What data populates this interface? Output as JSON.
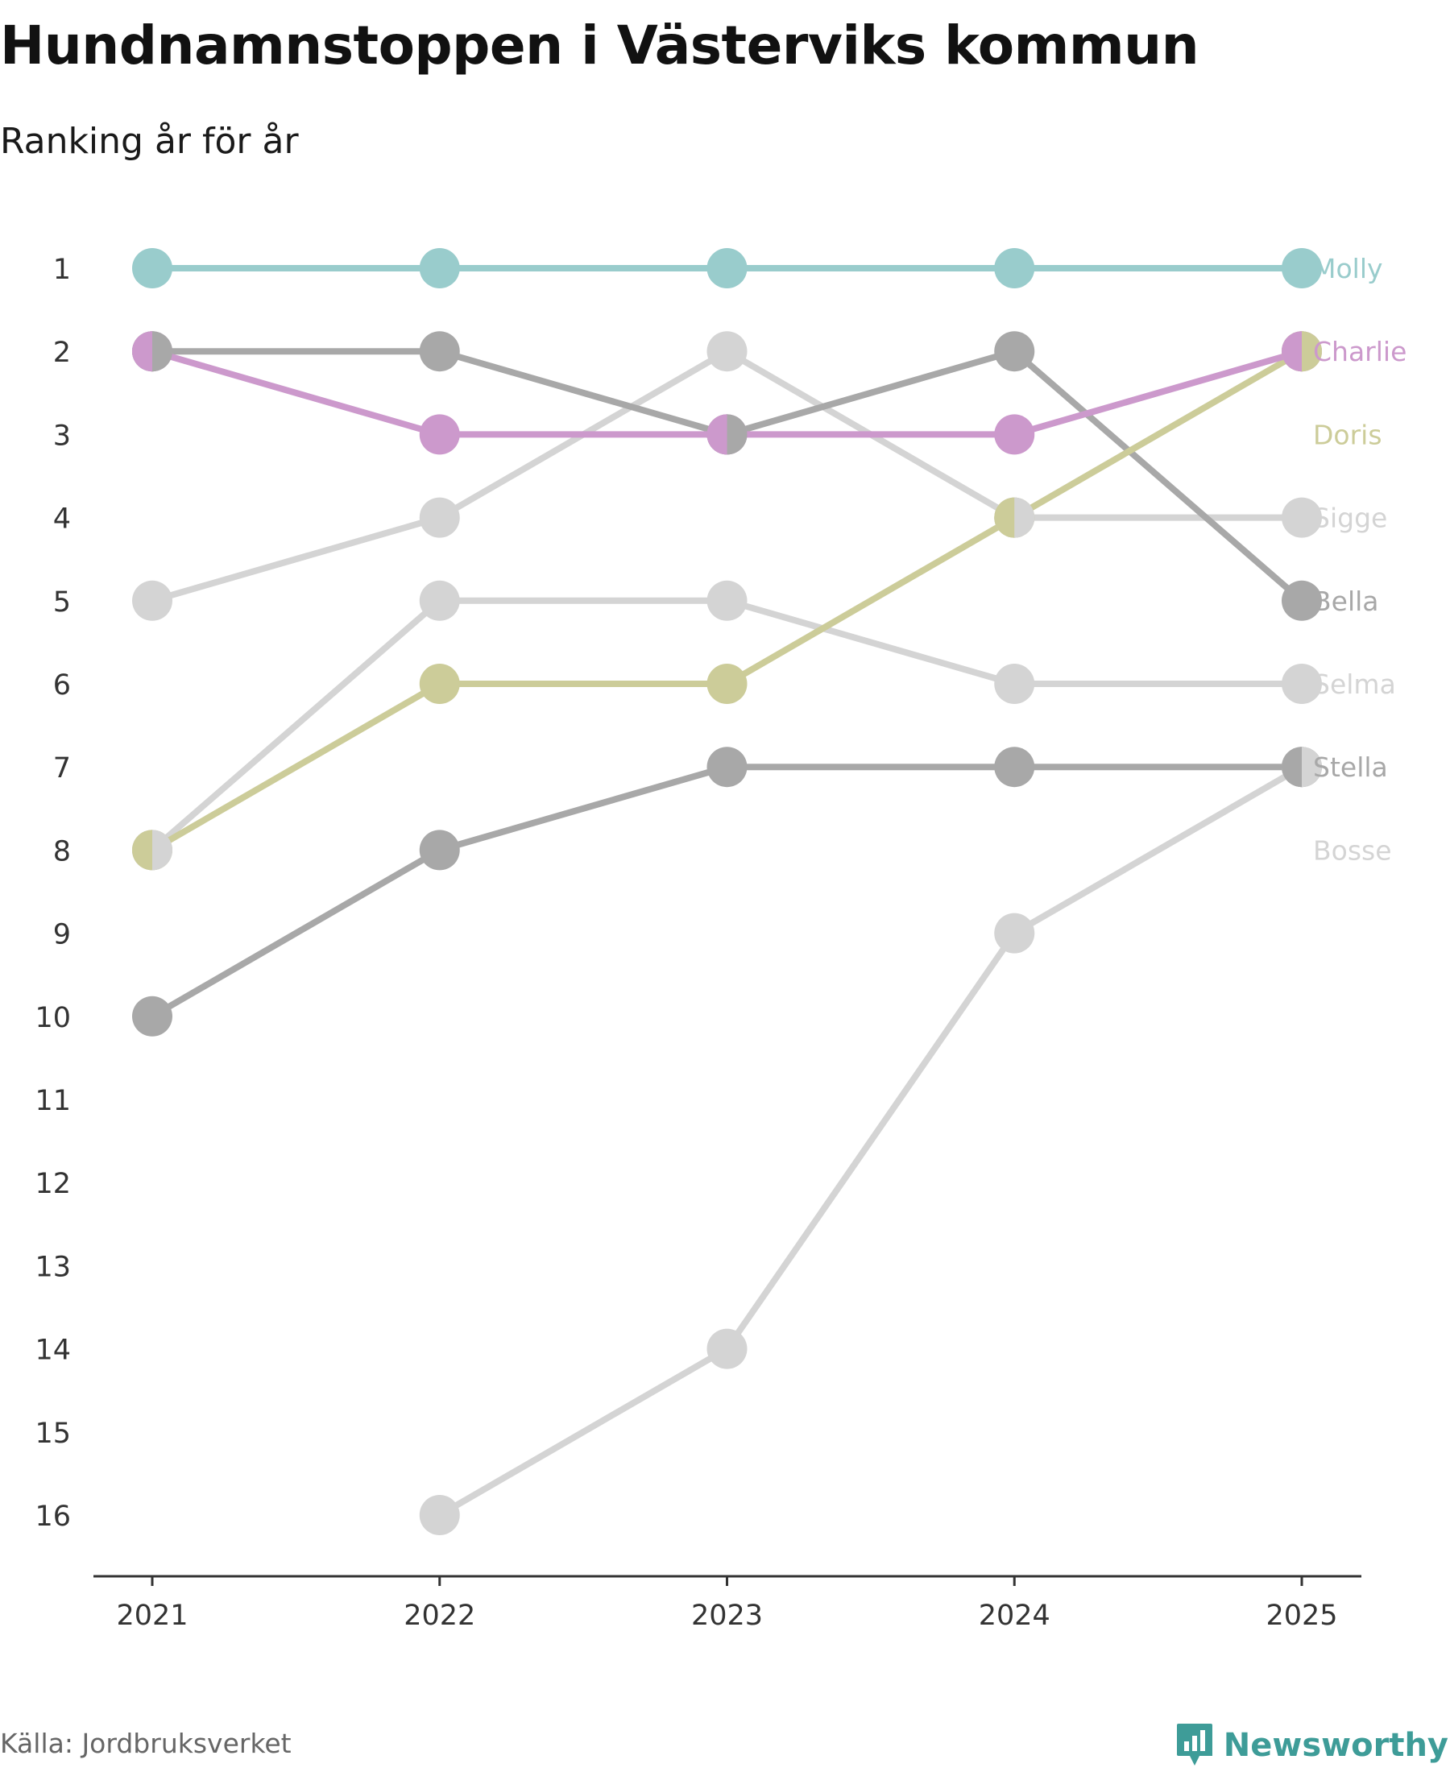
{
  "header": {
    "title": "Hundnamnstoppen i Västerviks kommun",
    "subtitle": "Ranking år för år"
  },
  "footer": {
    "source": "Källa: Jordbruksverket",
    "brand": "Newsworthy"
  },
  "chart_data": {
    "type": "line",
    "title": "Hundnamnstoppen i Västerviks kommun",
    "subtitle": "Ranking år för år",
    "xlabel": "",
    "ylabel": "",
    "x": [
      "2021",
      "2022",
      "2023",
      "2024",
      "2025"
    ],
    "y_ticks": [
      1,
      2,
      3,
      4,
      5,
      6,
      7,
      8,
      9,
      10,
      11,
      12,
      13,
      14,
      15,
      16
    ],
    "ylim": [
      1,
      16
    ],
    "y_inverted": true,
    "grid": false,
    "series": [
      {
        "name": "Bosse",
        "color": "#d4d4d4",
        "values": [
          null,
          16,
          14,
          9,
          7
        ]
      },
      {
        "name": "Selma",
        "color": "#d4d4d4",
        "values": [
          8,
          5,
          5,
          6,
          6
        ]
      },
      {
        "name": "Sigge",
        "color": "#d4d4d4",
        "values": [
          5,
          4,
          2,
          4,
          4
        ]
      },
      {
        "name": "Stella",
        "color": "#a8a8a8",
        "values": [
          10,
          8,
          7,
          7,
          7
        ]
      },
      {
        "name": "Bella",
        "color": "#a8a8a8",
        "values": [
          2,
          2,
          3,
          2,
          5
        ]
      },
      {
        "name": "Doris",
        "color": "#cccc99",
        "values": [
          8,
          6,
          6,
          4,
          2
        ]
      },
      {
        "name": "Charlie",
        "color": "#cc99cc",
        "values": [
          2,
          3,
          3,
          3,
          2
        ]
      },
      {
        "name": "Molly",
        "color": "#99cccc",
        "values": [
          1,
          1,
          1,
          1,
          1
        ]
      }
    ],
    "end_labels": [
      {
        "name": "Molly",
        "rank": 1,
        "color": "#99cccc"
      },
      {
        "name": "Charlie",
        "rank": 2,
        "color": "#cc99cc"
      },
      {
        "name": "Doris",
        "rank": 3,
        "color": "#cccc99"
      },
      {
        "name": "Sigge",
        "rank": 4,
        "color": "#d4d4d4"
      },
      {
        "name": "Bella",
        "rank": 5,
        "color": "#a8a8a8"
      },
      {
        "name": "Selma",
        "rank": 6,
        "color": "#d4d4d4"
      },
      {
        "name": "Stella",
        "rank": 7,
        "color": "#a8a8a8"
      },
      {
        "name": "Bosse",
        "rank": 8,
        "color": "#d4d4d4"
      }
    ]
  }
}
